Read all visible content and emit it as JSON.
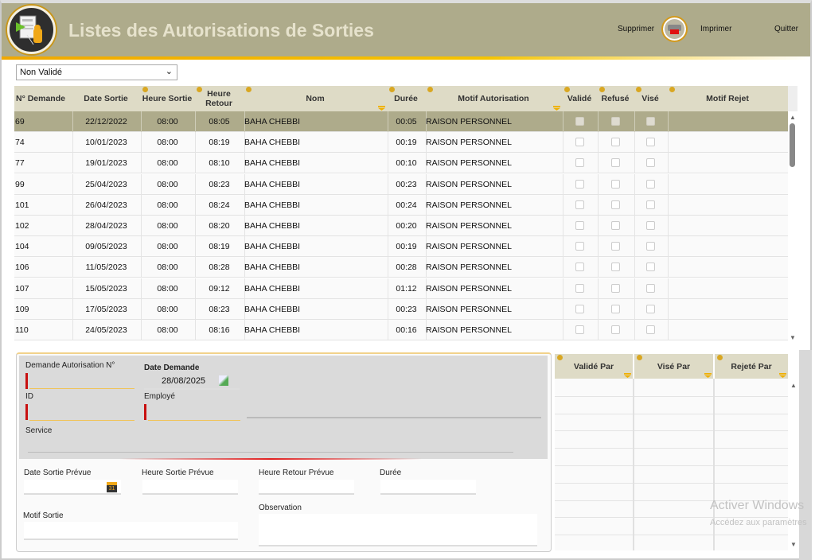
{
  "header": {
    "title": "Listes des Autorisations de Sorties",
    "delete_label": "Supprimer",
    "print_label": "Imprimer",
    "quit_label": "Quitter",
    "bg_color": "#aeab8b"
  },
  "filter": {
    "selected": "Non Validé"
  },
  "table": {
    "columns": [
      "N° Demande",
      "Date Sortie",
      "Heure Sortie",
      "Heure Retour",
      "Nom",
      "Durée",
      "Motif Autorisation",
      "Validé",
      "Refusé",
      "Visé",
      "Motif Rejet"
    ],
    "rows": [
      {
        "num": "69",
        "date": "22/12/2022",
        "hs": "08:00",
        "hr": "08:05",
        "nom": "BAHA CHEBBI",
        "duree": "00:05",
        "motif": "RAISON PERSONNEL",
        "valide": false,
        "refuse": false,
        "vise": false,
        "rejet": "",
        "selected": true
      },
      {
        "num": "74",
        "date": "10/01/2023",
        "hs": "08:00",
        "hr": "08:19",
        "nom": "BAHA CHEBBI",
        "duree": "00:19",
        "motif": "RAISON PERSONNEL",
        "valide": false,
        "refuse": false,
        "vise": false,
        "rejet": ""
      },
      {
        "num": "77",
        "date": "19/01/2023",
        "hs": "08:00",
        "hr": "08:10",
        "nom": "BAHA CHEBBI",
        "duree": "00:10",
        "motif": "RAISON PERSONNEL",
        "valide": false,
        "refuse": false,
        "vise": false,
        "rejet": ""
      },
      {
        "num": "99",
        "date": "25/04/2023",
        "hs": "08:00",
        "hr": "08:23",
        "nom": "BAHA CHEBBI",
        "duree": "00:23",
        "motif": "RAISON PERSONNEL",
        "valide": false,
        "refuse": false,
        "vise": false,
        "rejet": ""
      },
      {
        "num": "101",
        "date": "26/04/2023",
        "hs": "08:00",
        "hr": "08:24",
        "nom": "BAHA CHEBBI",
        "duree": "00:24",
        "motif": "RAISON PERSONNEL",
        "valide": false,
        "refuse": false,
        "vise": false,
        "rejet": ""
      },
      {
        "num": "102",
        "date": "28/04/2023",
        "hs": "08:00",
        "hr": "08:20",
        "nom": "BAHA CHEBBI",
        "duree": "00:20",
        "motif": "RAISON PERSONNEL",
        "valide": false,
        "refuse": false,
        "vise": false,
        "rejet": ""
      },
      {
        "num": "104",
        "date": "09/05/2023",
        "hs": "08:00",
        "hr": "08:19",
        "nom": "BAHA CHEBBI",
        "duree": "00:19",
        "motif": "RAISON PERSONNEL",
        "valide": false,
        "refuse": false,
        "vise": false,
        "rejet": ""
      },
      {
        "num": "106",
        "date": "11/05/2023",
        "hs": "08:00",
        "hr": "08:28",
        "nom": "BAHA CHEBBI",
        "duree": "00:28",
        "motif": "RAISON PERSONNEL",
        "valide": false,
        "refuse": false,
        "vise": false,
        "rejet": ""
      },
      {
        "num": "107",
        "date": "15/05/2023",
        "hs": "08:00",
        "hr": "09:12",
        "nom": "BAHA CHEBBI",
        "duree": "01:12",
        "motif": "RAISON PERSONNEL",
        "valide": false,
        "refuse": false,
        "vise": false,
        "rejet": ""
      },
      {
        "num": "109",
        "date": "17/05/2023",
        "hs": "08:00",
        "hr": "08:23",
        "nom": "BAHA CHEBBI",
        "duree": "00:23",
        "motif": "RAISON PERSONNEL",
        "valide": false,
        "refuse": false,
        "vise": false,
        "rejet": ""
      },
      {
        "num": "110",
        "date": "24/05/2023",
        "hs": "08:00",
        "hr": "08:16",
        "nom": "BAHA CHEBBI",
        "duree": "00:16",
        "motif": "RAISON PERSONNEL",
        "valide": false,
        "refuse": false,
        "vise": false,
        "rejet": ""
      }
    ]
  },
  "form": {
    "demande_label": "Demande Autorisation  N°",
    "date_demande_label": "Date Demande",
    "date_demande_value": "28/08/2025",
    "id_label": "ID",
    "employe_label": "Employé",
    "service_label": "Service",
    "date_sortie_label": "Date Sortie Prévue",
    "heure_sortie_label": "Heure Sortie Prévue",
    "heure_retour_label": "Heure Retour Prévue",
    "duree_label": "Durée",
    "motif_label": "Motif Sortie",
    "observation_label": "Observation",
    "calendar_day": "31"
  },
  "side_table": {
    "columns": [
      "Validé Par",
      "Visé Par",
      "Rejeté Par"
    ]
  },
  "watermark": {
    "line1": "Activer Windows",
    "line2": "Accédez aux paramètres"
  }
}
